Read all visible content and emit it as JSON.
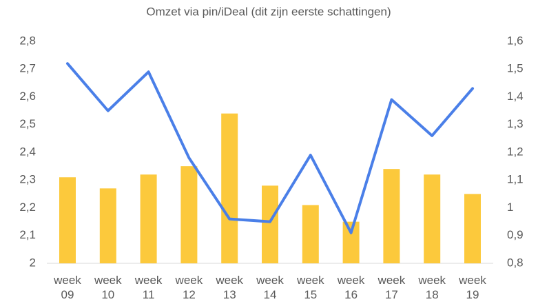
{
  "chart_data": {
    "type": "bar_line",
    "title": "Omzet via pin/iDeal (dit zijn eerste schattingen)",
    "categories": [
      "week 09",
      "week 10",
      "week 11",
      "week 12",
      "week 13",
      "week 14",
      "week 15",
      "week 16",
      "week 17",
      "week 18",
      "week 19"
    ],
    "series": [
      {
        "type": "bar",
        "color": "#fcc93c",
        "values": [
          2.31,
          2.27,
          2.32,
          2.35,
          2.54,
          2.28,
          2.21,
          2.15,
          2.34,
          2.32,
          2.25
        ]
      },
      {
        "type": "line",
        "axis": "y2",
        "color": "#4a7fe8",
        "values": [
          1.52,
          1.35,
          1.49,
          1.18,
          0.96,
          0.95,
          1.19,
          0.91,
          1.39,
          1.26,
          1.43
        ]
      }
    ],
    "ylim": [
      2,
      2.8
    ],
    "yticks": [
      2,
      {
        "value": 2.1,
        "label": "2,1"
      },
      {
        "value": 2.2,
        "label": "2,2"
      },
      {
        "value": 2.3,
        "label": "2,3"
      },
      {
        "value": 2.4,
        "label": "2,4"
      },
      {
        "value": 2.5,
        "label": "2,5"
      },
      {
        "value": 2.6,
        "label": "2,6"
      },
      {
        "value": 2.7,
        "label": "2,7"
      },
      {
        "value": 2.8,
        "label": "2,8"
      }
    ],
    "y2lim": [
      0.8,
      1.6
    ],
    "y2ticks": [
      {
        "value": 0.8,
        "label": "0,8"
      },
      {
        "value": 0.9,
        "label": "0,9"
      },
      1,
      {
        "value": 1.1,
        "label": "1,1"
      },
      {
        "value": 1.2,
        "label": "1,2"
      },
      {
        "value": 1.3,
        "label": "1,3"
      },
      {
        "value": 1.4,
        "label": "1,4"
      },
      {
        "value": 1.5,
        "label": "1,5"
      },
      {
        "value": 1.6,
        "label": "1,6"
      }
    ],
    "grid": false
  }
}
